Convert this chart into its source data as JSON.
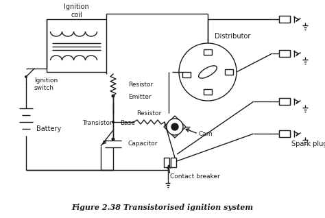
{
  "title": "Figure 2.38 Transistorised ignition system",
  "bg_color": "#ffffff",
  "line_color": "#1a1a1a",
  "labels": {
    "ignition_coil": "Ignition\ncoil",
    "ignition_switch": "Ignition\nswitch",
    "battery": "Battery",
    "resistor1": "Resistor",
    "emitter": "Emitter",
    "transistor": "Transistor",
    "base": "Base",
    "resistor2": "Resistor",
    "capacitor": "Capacitor",
    "cam": "Cam",
    "contact_breaker": "Contact breaker",
    "distributor": "Distributor",
    "spark_plugs": "Spark plugs"
  },
  "figsize": [
    4.74,
    3.18
  ],
  "dpi": 100
}
